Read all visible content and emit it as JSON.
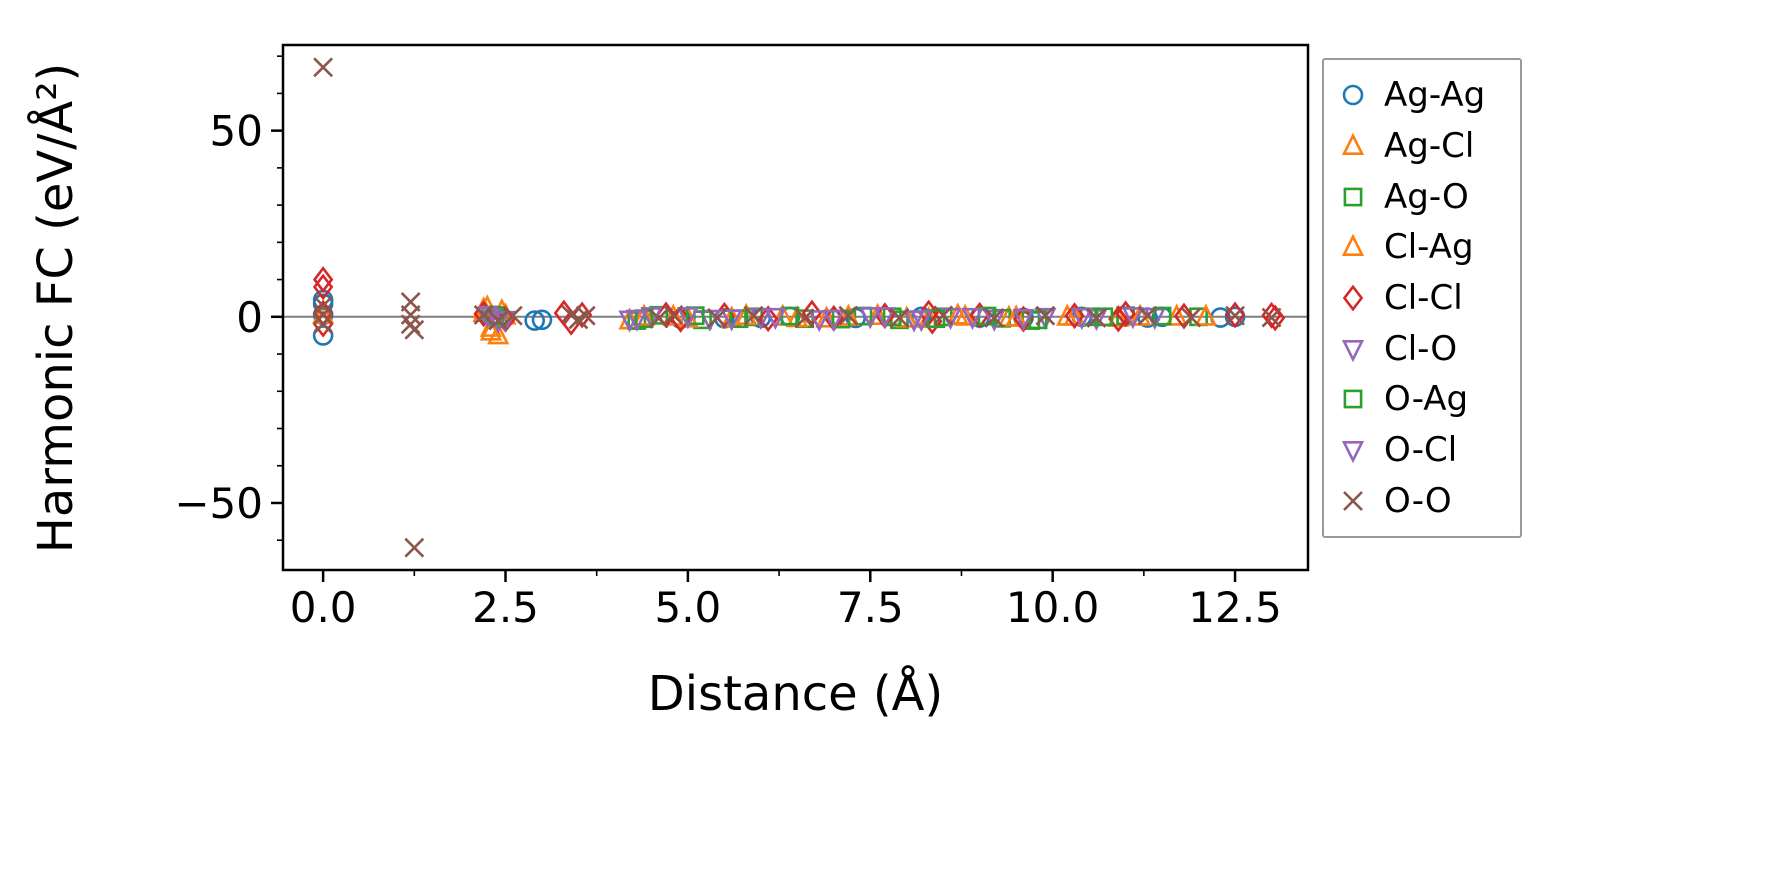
{
  "figure": {
    "background": "#ffffff",
    "axis_color": "#000000",
    "zero_line_color": "#7f7f7f",
    "legend_border_color": "#9a9a9a"
  },
  "chart_data": {
    "type": "scatter",
    "title": "",
    "xlabel": "Distance (Å)",
    "ylabel": "Harmonic FC (eV/Å²)",
    "xlim": [
      -0.55,
      13.5
    ],
    "ylim": [
      -68,
      73
    ],
    "xticks": [
      0.0,
      2.5,
      5.0,
      7.5,
      10.0,
      12.5
    ],
    "yticks": [
      -50,
      0,
      50
    ],
    "grid": false,
    "zero_line": true,
    "legend_position": "outside-right",
    "series": [
      {
        "name": "Ag-Ag",
        "marker": "circle",
        "color": "#1f77b4",
        "points": [
          [
            0,
            4.5
          ],
          [
            0,
            3.5
          ],
          [
            0,
            0.5
          ],
          [
            0,
            -5
          ],
          [
            2.9,
            -1
          ],
          [
            3.0,
            -0.8
          ],
          [
            4.9,
            -0.5
          ],
          [
            5.5,
            -0.4
          ],
          [
            6.0,
            -0.3
          ],
          [
            6.4,
            0
          ],
          [
            7.3,
            -0.3
          ],
          [
            8.2,
            0
          ],
          [
            9.0,
            -0.2
          ],
          [
            9.6,
            -0.3
          ],
          [
            10.4,
            0
          ],
          [
            11.3,
            -0.2
          ],
          [
            11.5,
            0
          ],
          [
            12.3,
            -0.2
          ],
          [
            12.5,
            0
          ]
        ]
      },
      {
        "name": "Ag-Cl",
        "marker": "triangle-up",
        "color": "#ff7f0e",
        "points": [
          [
            0,
            0.5
          ],
          [
            2.2,
            1
          ],
          [
            2.25,
            2.5
          ],
          [
            2.3,
            -3
          ],
          [
            2.4,
            -5
          ],
          [
            2.5,
            0.3
          ],
          [
            4.2,
            -1
          ],
          [
            4.8,
            0
          ],
          [
            5.6,
            -0.5
          ],
          [
            6.3,
            0
          ],
          [
            6.9,
            -0.5
          ],
          [
            7.6,
            0.2
          ],
          [
            8.3,
            -0.6
          ],
          [
            8.8,
            0
          ],
          [
            9.4,
            -0.3
          ],
          [
            10.2,
            0
          ],
          [
            10.9,
            -0.3
          ],
          [
            11.7,
            0
          ]
        ]
      },
      {
        "name": "Ag-O",
        "marker": "square",
        "color": "#2ca02c",
        "points": [
          [
            2.3,
            0.5
          ],
          [
            2.4,
            -0.5
          ],
          [
            4.3,
            -1
          ],
          [
            4.6,
            0.4
          ],
          [
            5.2,
            -0.8
          ],
          [
            5.9,
            0
          ],
          [
            6.6,
            -0.5
          ],
          [
            7.4,
            0.2
          ],
          [
            7.9,
            -0.8
          ],
          [
            8.5,
            0
          ],
          [
            9.3,
            -0.4
          ],
          [
            9.7,
            -1
          ],
          [
            10.5,
            0
          ],
          [
            11.0,
            0.3
          ],
          [
            12.0,
            0
          ]
        ]
      },
      {
        "name": "Cl-Ag",
        "marker": "triangle-up",
        "color": "#ff7f0e",
        "points": [
          [
            2.2,
            2
          ],
          [
            2.3,
            -4
          ],
          [
            2.45,
            1.5
          ],
          [
            4.4,
            0
          ],
          [
            5.0,
            -0.5
          ],
          [
            5.8,
            0.2
          ],
          [
            6.5,
            -0.4
          ],
          [
            7.2,
            0
          ],
          [
            8.0,
            -0.5
          ],
          [
            8.7,
            0.3
          ],
          [
            9.5,
            -0.2
          ],
          [
            10.3,
            0
          ],
          [
            11.2,
            0
          ],
          [
            12.1,
            0
          ]
        ]
      },
      {
        "name": "Cl-Cl",
        "marker": "diamond",
        "color": "#d62728",
        "points": [
          [
            0,
            10
          ],
          [
            0,
            8
          ],
          [
            0,
            1
          ],
          [
            0,
            -2
          ],
          [
            2.2,
            0.8
          ],
          [
            2.5,
            -0.7
          ],
          [
            3.3,
            1
          ],
          [
            3.4,
            -1.5
          ],
          [
            3.55,
            0.5
          ],
          [
            4.7,
            0.5
          ],
          [
            4.9,
            -0.7
          ],
          [
            5.5,
            0.4
          ],
          [
            6.1,
            -0.5
          ],
          [
            6.7,
            1
          ],
          [
            7.0,
            -0.4
          ],
          [
            7.7,
            0.3
          ],
          [
            8.3,
            1
          ],
          [
            8.35,
            -1.2
          ],
          [
            9.0,
            0.4
          ],
          [
            9.6,
            -0.6
          ],
          [
            10.3,
            0.3
          ],
          [
            10.9,
            -0.6
          ],
          [
            11.0,
            0.8
          ],
          [
            11.8,
            0.2
          ],
          [
            12.5,
            0.5
          ],
          [
            13.0,
            0.4
          ],
          [
            13.05,
            -0.3
          ]
        ]
      },
      {
        "name": "Cl-O",
        "marker": "triangle-down",
        "color": "#9467bd",
        "points": [
          [
            2.3,
            0.5
          ],
          [
            2.4,
            -1
          ],
          [
            4.2,
            -0.7
          ],
          [
            4.5,
            0.2
          ],
          [
            5.3,
            -0.5
          ],
          [
            6.0,
            0
          ],
          [
            6.8,
            -0.6
          ],
          [
            7.5,
            0.2
          ],
          [
            8.1,
            -0.7
          ],
          [
            8.6,
            0
          ],
          [
            9.2,
            -0.5
          ],
          [
            9.9,
            0
          ],
          [
            10.6,
            -0.3
          ],
          [
            11.4,
            0
          ]
        ]
      },
      {
        "name": "O-Ag",
        "marker": "square",
        "color": "#2ca02c",
        "points": [
          [
            2.35,
            0.3
          ],
          [
            4.4,
            -0.5
          ],
          [
            5.1,
            0.3
          ],
          [
            5.7,
            -0.5
          ],
          [
            6.4,
            0.2
          ],
          [
            7.1,
            -0.6
          ],
          [
            7.8,
            0
          ],
          [
            8.4,
            -0.5
          ],
          [
            9.1,
            0.2
          ],
          [
            9.8,
            -0.8
          ],
          [
            10.7,
            0
          ],
          [
            11.5,
            0.2
          ]
        ]
      },
      {
        "name": "O-Cl",
        "marker": "triangle-down",
        "color": "#9467bd",
        "points": [
          [
            2.25,
            0.4
          ],
          [
            2.5,
            -0.8
          ],
          [
            4.3,
            -0.5
          ],
          [
            5.0,
            0.2
          ],
          [
            5.6,
            -0.4
          ],
          [
            6.2,
            0
          ],
          [
            7.0,
            -0.5
          ],
          [
            7.7,
            0.2
          ],
          [
            8.2,
            -0.6
          ],
          [
            8.9,
            0
          ],
          [
            9.6,
            -0.3
          ],
          [
            10.4,
            0
          ],
          [
            11.1,
            0.2
          ]
        ]
      },
      {
        "name": "O-O",
        "marker": "x",
        "color": "#8c564b",
        "points": [
          [
            0,
            67
          ],
          [
            0,
            3
          ],
          [
            0,
            0.5
          ],
          [
            0,
            -2
          ],
          [
            1.2,
            4
          ],
          [
            1.2,
            0.5
          ],
          [
            1.2,
            -2
          ],
          [
            1.25,
            -3.5
          ],
          [
            1.25,
            -62
          ],
          [
            2.2,
            0.5
          ],
          [
            2.4,
            -1
          ],
          [
            2.6,
            0.3
          ],
          [
            3.4,
            0.5
          ],
          [
            3.5,
            -0.7
          ],
          [
            3.6,
            0.3
          ],
          [
            4.6,
            -0.4
          ],
          [
            4.8,
            0.5
          ],
          [
            5.4,
            -0.3
          ],
          [
            5.9,
            0.3
          ],
          [
            6.6,
            -0.4
          ],
          [
            7.2,
            0.3
          ],
          [
            7.9,
            -0.3
          ],
          [
            8.5,
            0.4
          ],
          [
            9.2,
            -0.3
          ],
          [
            9.9,
            0.3
          ],
          [
            10.6,
            -0.3
          ],
          [
            11.3,
            0.3
          ],
          [
            11.9,
            -0.2
          ],
          [
            12.5,
            0.3
          ],
          [
            13.0,
            -0.2
          ]
        ]
      }
    ]
  }
}
